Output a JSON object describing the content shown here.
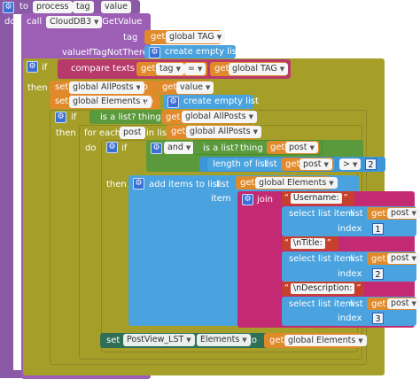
{
  "procedure": {
    "to": "to",
    "name": "process",
    "param1": "tag",
    "param2": "value",
    "do": "do"
  },
  "cloud_call": {
    "call": "call",
    "component": "CloudDB3",
    "method": ".GetValue",
    "tag_label": "tag",
    "value_if_label": "valueIfTagNotThere"
  },
  "get_global_tag_1": {
    "get": "get",
    "var": "global TAG"
  },
  "create_empty_list_1": "create empty list",
  "if1": {
    "if": "if",
    "compare": "compare texts",
    "get": "get",
    "tag": "tag",
    "op": "=",
    "get2": "get",
    "var2": "global TAG"
  },
  "then1": "then",
  "set_allposts": {
    "set": "set",
    "var": "global AllPosts",
    "to": "to",
    "get": "get",
    "val": "value"
  },
  "set_elements": {
    "set": "set",
    "var": "global Elements",
    "to": "to",
    "create": "create empty list"
  },
  "if2": {
    "if": "if",
    "is_list": "is a list?",
    "thing": "thing",
    "get": "get",
    "var": "global AllPosts"
  },
  "then2": "then",
  "foreach": {
    "label": "for each",
    "item": "post",
    "in_list": "in list",
    "get": "get",
    "var": "global AllPosts"
  },
  "do_label": "do",
  "if3": {
    "if": "if",
    "and": "and",
    "is_list": "is a list?",
    "thing": "thing",
    "get": "get",
    "var": "post"
  },
  "length": {
    "label": "length of list",
    "list": "list",
    "get": "get",
    "var": "post",
    "op": ">",
    "num": "2"
  },
  "then3": "then",
  "add_items": {
    "label": "add items to list",
    "list": "list",
    "get": "get",
    "var": "global Elements",
    "item": "item"
  },
  "join": "join",
  "strings": [
    "Username:",
    "\\nTitle:",
    "\\nDescription:"
  ],
  "select_items": [
    {
      "label": "select list item",
      "list": "list",
      "get": "get",
      "var": "post",
      "index": "index",
      "num": "1"
    },
    {
      "label": "select list item",
      "list": "list",
      "get": "get",
      "var": "post",
      "index": "index",
      "num": "2"
    },
    {
      "label": "select list item",
      "list": "list",
      "get": "get",
      "var": "post",
      "index": "index",
      "num": "3"
    }
  ],
  "set_component": {
    "set": "set",
    "component": "PostView_LST",
    "prop": "Elements",
    "to": "to",
    "get": "get",
    "var": "global Elements"
  },
  "colors": {
    "procedure": "#8a5aa6",
    "control": "#a59f2a",
    "variable": "#e08a2b",
    "list": "#4aa3df",
    "text": "#b73a6b",
    "logic": "#5b9a3c",
    "component": "#2f6f56"
  }
}
